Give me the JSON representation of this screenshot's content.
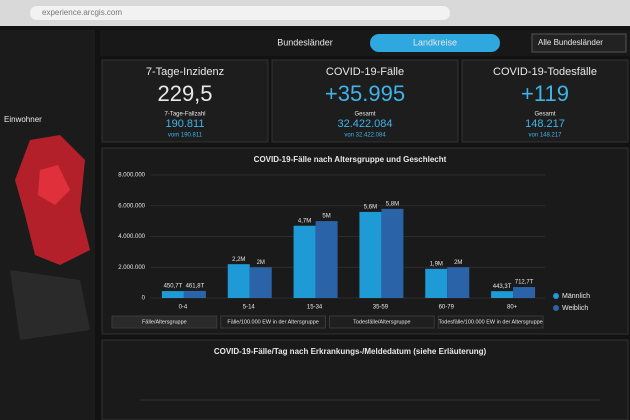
{
  "browser": {
    "url": "experience.arcgis.com"
  },
  "sidebar": {
    "label": "Einwohner"
  },
  "tabs": {
    "items": [
      "Bundesländer",
      "Landkreise"
    ],
    "active": "Landkreise",
    "dropdown": "Alle Bundesländer"
  },
  "cards": [
    {
      "title": "7-Tage-Inzidenz",
      "value": "229,5",
      "sublabel": "7-Tage-Fallzahl",
      "subvalue": "190.811",
      "note": "vom 190.811"
    },
    {
      "title": "COVID-19-Fälle",
      "value": "+35.995",
      "sublabel": "Gesamt",
      "subvalue": "32.422.084",
      "note": "von 32.422.084"
    },
    {
      "title": "COVID-19-Todesfälle",
      "value": "+119",
      "sublabel": "Gesamt",
      "subvalue": "148.217",
      "note": "von 148.217"
    }
  ],
  "chart_data": {
    "type": "bar",
    "title": "COVID-19-Fälle nach Altersgruppe und Geschlecht",
    "categories": [
      "0-4",
      "5-14",
      "15-34",
      "35-59",
      "60-79",
      "80+"
    ],
    "series": [
      {
        "name": "Männlich",
        "color": "#1e9ad6",
        "values": [
          450700,
          2200000,
          4700000,
          5600000,
          1900000,
          443300
        ],
        "value_labels": [
          "450,7T",
          "2,2M",
          "4,7M",
          "5,6M",
          "1,9M",
          "443,3T"
        ]
      },
      {
        "name": "Weiblich",
        "color": "#2a63a8",
        "values": [
          461800,
          2000000,
          5000000,
          5800000,
          2000000,
          712700
        ],
        "value_labels": [
          "461,8T",
          "2M",
          "5M",
          "5,8M",
          "2M",
          "712,7T"
        ]
      }
    ],
    "ylim": [
      0,
      8000000
    ],
    "yticks": [
      {
        "value": 0,
        "label": "0"
      },
      {
        "value": 2000000,
        "label": "2.000.000"
      },
      {
        "value": 4000000,
        "label": "4.000.000"
      },
      {
        "value": 6000000,
        "label": "6.000.000"
      },
      {
        "value": 8000000,
        "label": "8.000.000"
      }
    ],
    "legend": "right",
    "filters": [
      "Fälle/Altersgruppe",
      "Fälle/100.000 EW in der Altersgruppe",
      "Todesfälle/Altersgruppe",
      "Todesfälle/100.000 EW in der Altersgruppe"
    ]
  },
  "bottom_chart": {
    "title": "COVID-19-Fälle/Tag nach Erkrankungs-/Meldedatum (siehe Erläuterung)"
  }
}
